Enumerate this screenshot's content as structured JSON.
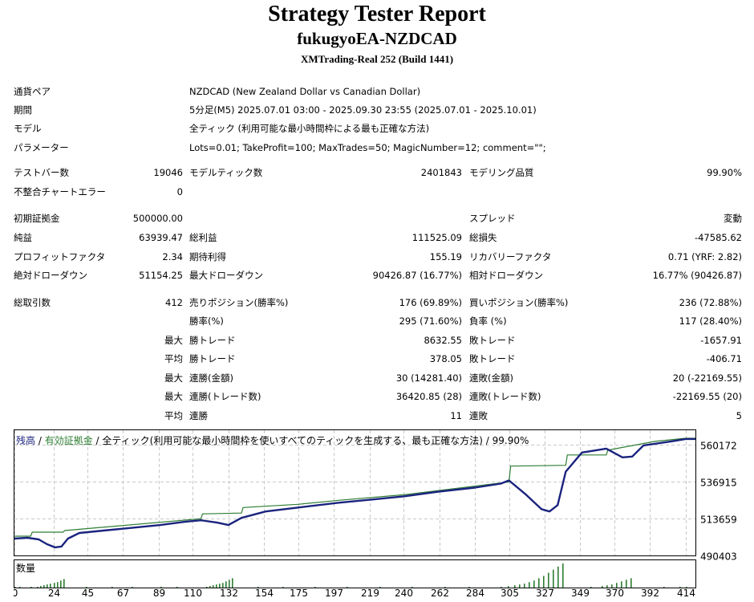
{
  "header": {
    "title": "Strategy Tester Report",
    "subtitle": "fukugyoEA-NZDCAD",
    "build": "XMTrading-Real 252 (Build 1441)"
  },
  "info": {
    "symbol_label": "通貨ペア",
    "symbol_value": "NZDCAD (New Zealand Dollar vs Canadian Dollar)",
    "period_label": "期間",
    "period_value": "5分足(M5) 2025.07.01 03:00 - 2025.09.30 23:55 (2025.07.01 - 2025.10.01)",
    "model_label": "モデル",
    "model_value": "全ティック (利用可能な最小時間枠による最も正確な方法)",
    "params_label": "パラメーター",
    "params_value": "Lots=0.01; TakeProfit=100; MaxTrades=50; MagicNumber=12; comment=\"\";"
  },
  "bars": {
    "bars_label": "テストバー数",
    "bars_value": "19046",
    "ticks_label": "モデルティック数",
    "ticks_value": "2401843",
    "quality_label": "モデリング品質",
    "quality_value": "99.90%",
    "mismatch_label": "不整合チャートエラー",
    "mismatch_value": "0"
  },
  "results": {
    "deposit_label": "初期証拠金",
    "deposit_value": "500000.00",
    "spread_label": "スプレッド",
    "spread_value": "変動",
    "net_label": "純益",
    "net_value": "63939.47",
    "gross_profit_label": "総利益",
    "gross_profit_value": "111525.09",
    "gross_loss_label": "総損失",
    "gross_loss_value": "-47585.62",
    "pf_label": "プロフィットファクタ",
    "pf_value": "2.34",
    "payoff_label": "期待利得",
    "payoff_value": "155.19",
    "recovery_label": "リカバリーファクタ",
    "recovery_value": "0.71 (YRF: 2.82)",
    "abs_dd_label": "絶対ドローダウン",
    "abs_dd_value": "51154.25",
    "max_dd_label": "最大ドローダウン",
    "max_dd_value": "90426.87 (16.77%)",
    "rel_dd_label": "相対ドローダウン",
    "rel_dd_value": "16.77% (90426.87)"
  },
  "trades": {
    "total_label": "総取引数",
    "total_value": "412",
    "short_label": "売りポジション(勝率%)",
    "short_value": "176 (69.89%)",
    "long_label": "買いポジション(勝率%)",
    "long_value": "236 (72.88%)",
    "win_label": "勝率(%)",
    "win_value": "295 (71.60%)",
    "loss_label": "負率 (%)",
    "loss_value": "117 (28.40%)",
    "max_word": "最大",
    "avg_word": "平均",
    "largest_win_label": "勝トレード",
    "largest_win_value": "8632.55",
    "largest_loss_label": "敗トレード",
    "largest_loss_value": "-1657.91",
    "avg_win_label": "勝トレード",
    "avg_win_value": "378.05",
    "avg_loss_label": "敗トレード",
    "avg_loss_value": "-406.71",
    "max_cons_wins_label": "連勝(金額)",
    "max_cons_wins_value": "30 (14281.40)",
    "max_cons_losses_label": "連敗(金額)",
    "max_cons_losses_value": "20 (-22169.55)",
    "max_cons_profit_label": "連勝(トレード数)",
    "max_cons_profit_value": "36420.85 (28)",
    "max_cons_loss_label": "連敗(トレード数)",
    "max_cons_loss_value": "-22169.55 (20)",
    "avg_cons_wins_label": "連勝",
    "avg_cons_wins_value": "11",
    "avg_cons_losses_label": "連敗",
    "avg_cons_losses_value": "5"
  },
  "chart_data": {
    "type": "line",
    "legend_balance": "残高",
    "legend_sep1": " / ",
    "legend_equity": "有効証拠金",
    "legend_rest": " / 全ティック(利用可能な最小時間枠を使いすべてのティックを生成する、最も正確な方法) / 99.90%",
    "volume_label": "数量",
    "ylim": [
      490403,
      567000
    ],
    "xlim": [
      0,
      420
    ],
    "y_ticks": [
      "560172",
      "536915",
      "513659",
      "490403"
    ],
    "x_ticks": [
      "0",
      "24",
      "45",
      "67",
      "89",
      "110",
      "132",
      "154",
      "175",
      "197",
      "219",
      "240",
      "262",
      "284",
      "305",
      "327",
      "349",
      "370",
      "392",
      "414"
    ],
    "colors": {
      "balance": "#2e7d32",
      "equity": "#1a237e",
      "volume": "#2e7d32",
      "grid": "#c8c8c8"
    },
    "series": [
      {
        "name": "有効証拠金",
        "points": [
          [
            0,
            501000
          ],
          [
            8,
            501500
          ],
          [
            15,
            500500
          ],
          [
            20,
            497500
          ],
          [
            25,
            495500
          ],
          [
            29,
            496000
          ],
          [
            33,
            501000
          ],
          [
            40,
            504500
          ],
          [
            55,
            506000
          ],
          [
            70,
            507500
          ],
          [
            90,
            509500
          ],
          [
            105,
            511500
          ],
          [
            115,
            512500
          ],
          [
            125,
            511000
          ],
          [
            132,
            509500
          ],
          [
            140,
            514000
          ],
          [
            155,
            518000
          ],
          [
            175,
            520500
          ],
          [
            200,
            523500
          ],
          [
            220,
            525500
          ],
          [
            240,
            527500
          ],
          [
            262,
            530500
          ],
          [
            284,
            533000
          ],
          [
            300,
            535500
          ],
          [
            305,
            537500
          ],
          [
            315,
            529000
          ],
          [
            325,
            519500
          ],
          [
            330,
            518000
          ],
          [
            335,
            522000
          ],
          [
            340,
            543000
          ],
          [
            350,
            555000
          ],
          [
            365,
            557500
          ],
          [
            375,
            552000
          ],
          [
            381,
            552500
          ],
          [
            388,
            559500
          ],
          [
            405,
            562000
          ],
          [
            414,
            563500
          ],
          [
            420,
            563500
          ]
        ]
      },
      {
        "name": "残高",
        "points": [
          [
            0,
            502500
          ],
          [
            10,
            502500
          ],
          [
            11,
            505000
          ],
          [
            30,
            505000
          ],
          [
            31,
            506000
          ],
          [
            115,
            513500
          ],
          [
            116,
            516500
          ],
          [
            140,
            517000
          ],
          [
            141,
            520500
          ],
          [
            175,
            522500
          ],
          [
            200,
            525000
          ],
          [
            240,
            528500
          ],
          [
            305,
            536500
          ],
          [
            306,
            546500
          ],
          [
            340,
            547000
          ],
          [
            341,
            553500
          ],
          [
            365,
            553500
          ],
          [
            366,
            556500
          ],
          [
            395,
            562000
          ],
          [
            414,
            564000
          ],
          [
            420,
            564000
          ]
        ]
      }
    ],
    "volume": [
      [
        0,
        1
      ],
      [
        3,
        1
      ],
      [
        10,
        1
      ],
      [
        14,
        1
      ],
      [
        16,
        2
      ],
      [
        18,
        3
      ],
      [
        20,
        4
      ],
      [
        22,
        5
      ],
      [
        24,
        6
      ],
      [
        26,
        7
      ],
      [
        28,
        9
      ],
      [
        30,
        11
      ],
      [
        44,
        1
      ],
      [
        60,
        1
      ],
      [
        72,
        1
      ],
      [
        90,
        1
      ],
      [
        100,
        1
      ],
      [
        118,
        1
      ],
      [
        120,
        2
      ],
      [
        122,
        3
      ],
      [
        124,
        4
      ],
      [
        126,
        5
      ],
      [
        128,
        6
      ],
      [
        130,
        8
      ],
      [
        132,
        10
      ],
      [
        134,
        12
      ],
      [
        150,
        1
      ],
      [
        165,
        1
      ],
      [
        185,
        1
      ],
      [
        205,
        1
      ],
      [
        225,
        1
      ],
      [
        245,
        1
      ],
      [
        265,
        1
      ],
      [
        280,
        1
      ],
      [
        300,
        1
      ],
      [
        304,
        2
      ],
      [
        308,
        3
      ],
      [
        311,
        4
      ],
      [
        314,
        5
      ],
      [
        317,
        7
      ],
      [
        320,
        9
      ],
      [
        323,
        12
      ],
      [
        326,
        15
      ],
      [
        329,
        19
      ],
      [
        332,
        23
      ],
      [
        335,
        27
      ],
      [
        338,
        31
      ],
      [
        355,
        1
      ],
      [
        362,
        2
      ],
      [
        365,
        3
      ],
      [
        368,
        4
      ],
      [
        371,
        6
      ],
      [
        374,
        8
      ],
      [
        377,
        10
      ],
      [
        380,
        12
      ],
      [
        400,
        1
      ],
      [
        410,
        1
      ],
      [
        414,
        1
      ]
    ],
    "volume_max": 32
  }
}
